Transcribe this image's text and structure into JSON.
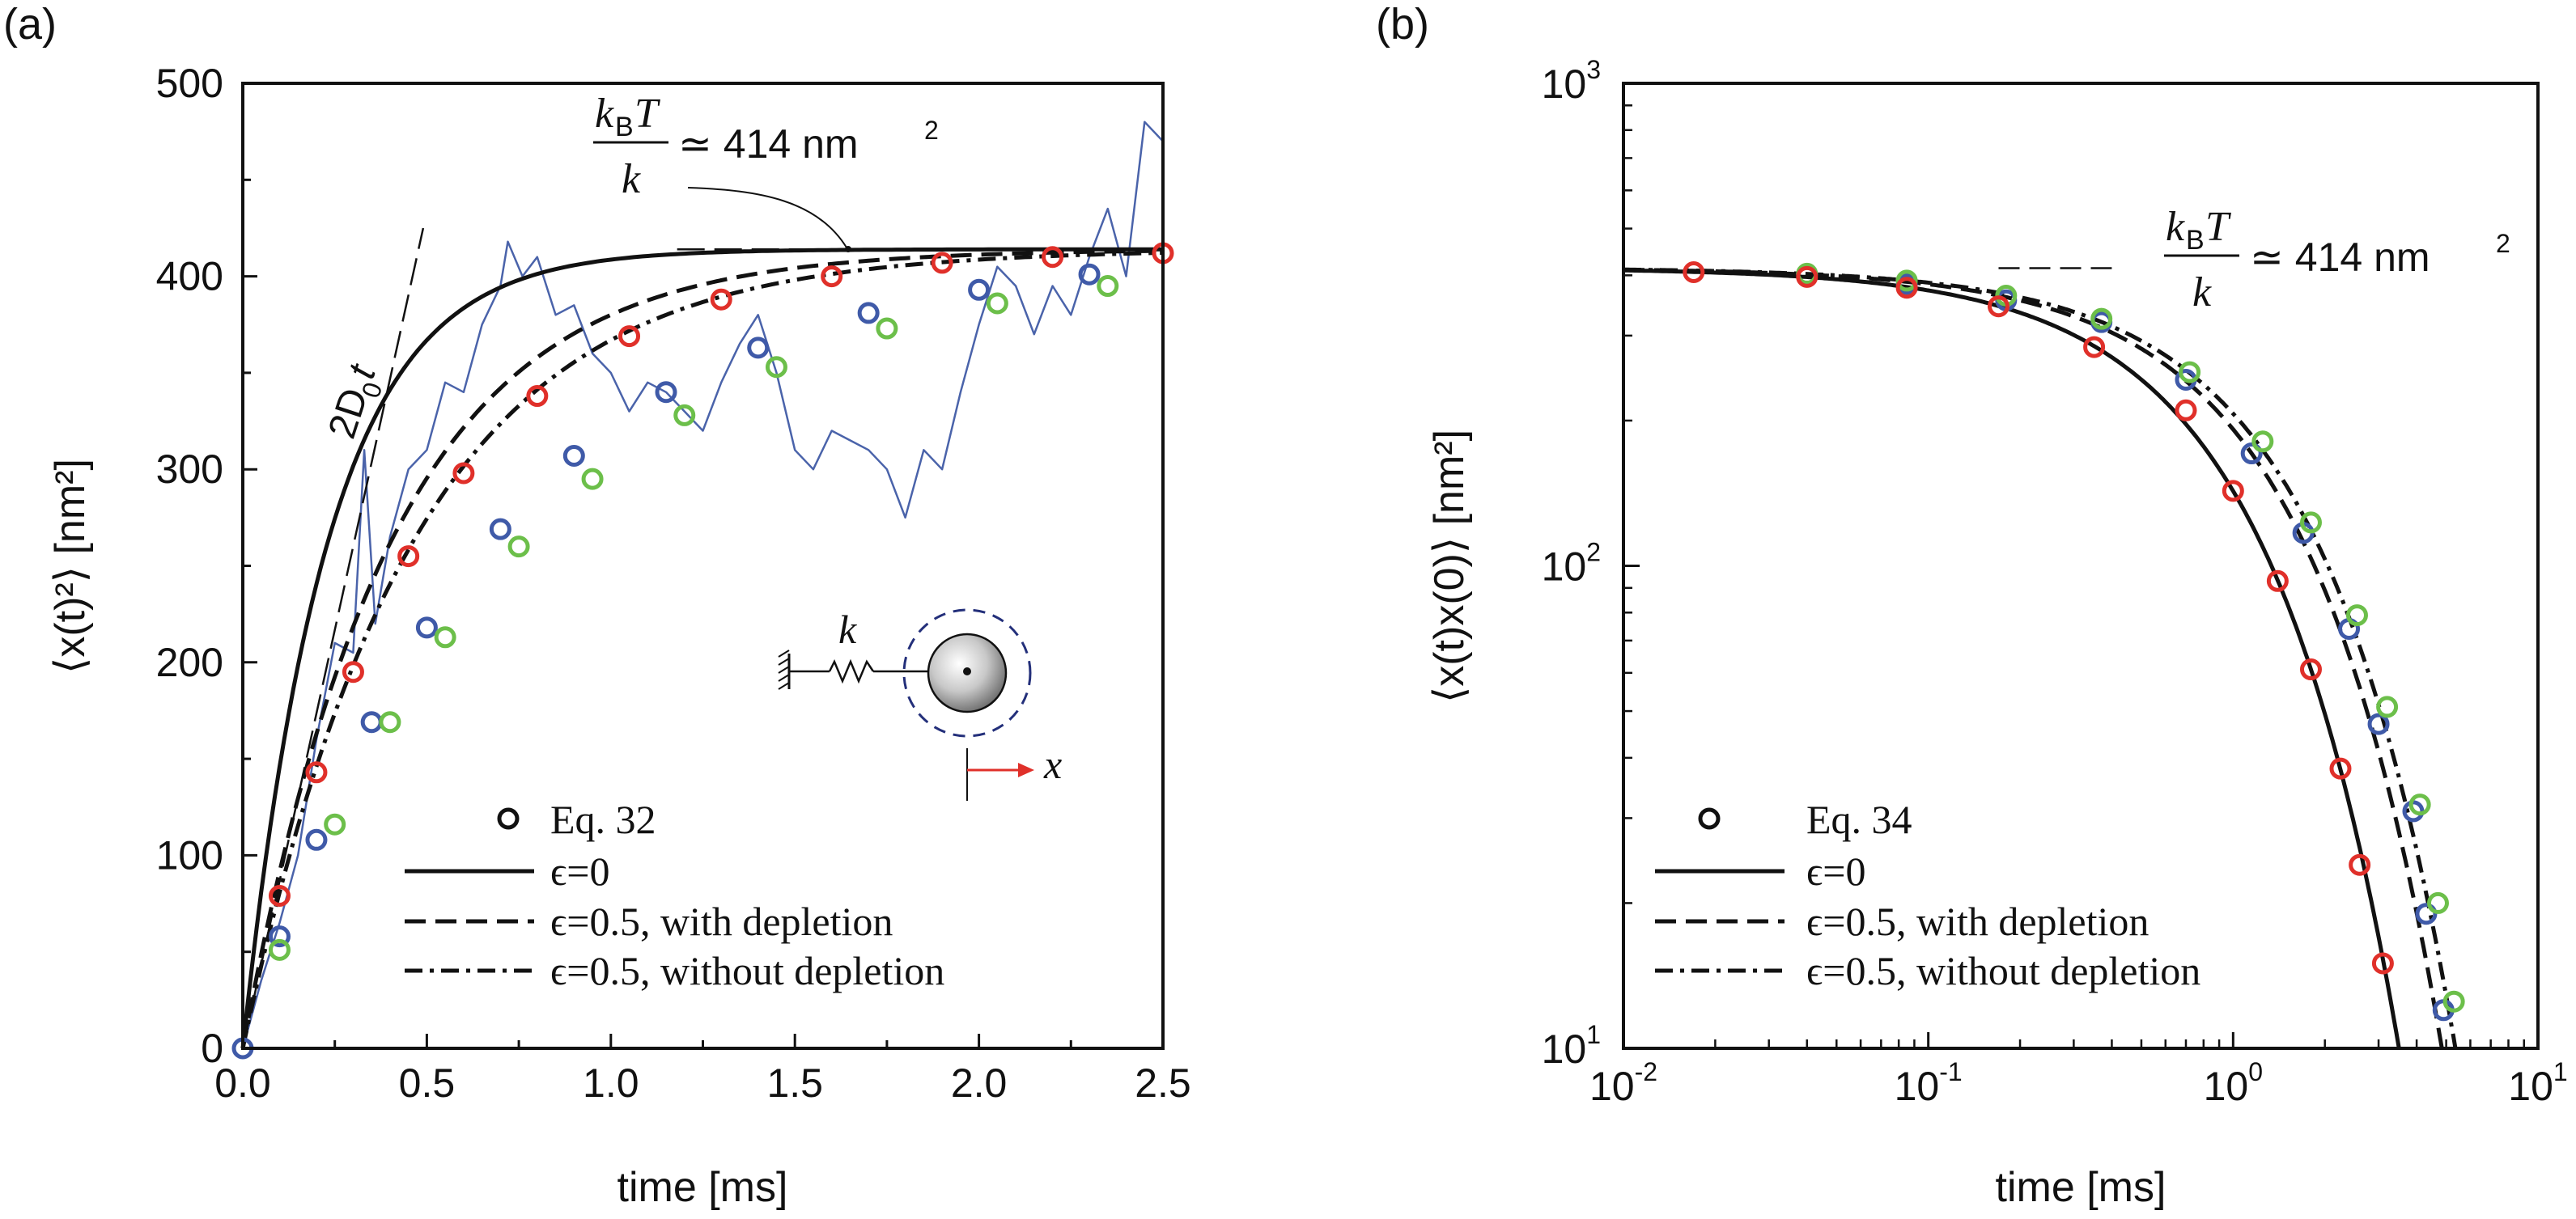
{
  "panel_a_label": "(a)",
  "panel_b_label": "(b)",
  "ann": {
    "frac_num": "k",
    "frac_sub": "B",
    "frac_T": "T",
    "frac_den": "k",
    "approx": "≃ 414 nm",
    "approx_sup": "2",
    "ballistic_main": "2D",
    "ballistic_sub": "0",
    "ballistic_t": "t",
    "inset_k": "k",
    "inset_x": "x"
  },
  "colors": {
    "red": "#e0302a",
    "blue": "#3f5aa8",
    "green": "#6cbf4a",
    "trace": "#4a63aa",
    "inset_dash": "#232f7a",
    "inset_arrow": "#e0302a"
  },
  "legend_a": [
    "Eq. 32",
    "ϵ=0",
    "ϵ=0.5, with depletion",
    "ϵ=0.5, without depletion"
  ],
  "legend_b": [
    "Eq. 34",
    "ϵ=0",
    "ϵ=0.5, with depletion",
    "ϵ=0.5, without depletion"
  ],
  "chart_data": [
    {
      "id": "a",
      "type": "line",
      "title": "",
      "xlabel": "time [ms]",
      "ylabel": "⟨x(t)²⟩ [nm²]",
      "xlim": [
        0,
        2.5
      ],
      "ylim": [
        0,
        500
      ],
      "xticks": [
        0,
        0.5,
        1,
        1.5,
        2,
        2.5
      ],
      "xtick_labels": [
        "0.0",
        "0.5",
        "1.0",
        "1.5",
        "2.0",
        "2.5"
      ],
      "yticks": [
        0,
        100,
        200,
        300,
        400,
        500
      ],
      "ytick_labels": [
        "0",
        "100",
        "200",
        "300",
        "400",
        "500"
      ],
      "plateau": 414,
      "series": [
        {
          "name": "ϵ=0",
          "style": "solid",
          "tau": 0.46
        },
        {
          "name": "ϵ=0.5, with depletion",
          "style": "dash",
          "tau": 0.8
        },
        {
          "name": "ϵ=0.5, without depletion",
          "style": "dashdot",
          "tau": 0.92
        },
        {
          "name": "2D0t",
          "style": "longdash",
          "points": [
            [
              0,
              0
            ],
            [
              0.49,
              425
            ]
          ]
        },
        {
          "name": "kBT/k plateau",
          "style": "longdash",
          "points": [
            [
              1.18,
              414
            ],
            [
              2.5,
              414
            ]
          ]
        }
      ],
      "markers": {
        "red": [
          [
            0.1,
            79
          ],
          [
            0.2,
            143
          ],
          [
            0.3,
            195
          ],
          [
            0.45,
            255
          ],
          [
            0.6,
            298
          ],
          [
            0.8,
            338
          ],
          [
            1.05,
            369
          ],
          [
            1.3,
            388
          ],
          [
            1.6,
            400
          ],
          [
            1.9,
            407
          ],
          [
            2.2,
            410
          ],
          [
            2.5,
            412
          ]
        ],
        "blue": [
          [
            0,
            0
          ],
          [
            0.1,
            58
          ],
          [
            0.2,
            108
          ],
          [
            0.35,
            169
          ],
          [
            0.5,
            218
          ],
          [
            0.7,
            269
          ],
          [
            0.9,
            307
          ],
          [
            1.15,
            340
          ],
          [
            1.4,
            363
          ],
          [
            1.7,
            381
          ],
          [
            2.0,
            393
          ],
          [
            2.3,
            401
          ]
        ],
        "green": [
          [
            0.1,
            51
          ],
          [
            0.25,
            116
          ],
          [
            0.4,
            169
          ],
          [
            0.55,
            213
          ],
          [
            0.75,
            260
          ],
          [
            0.95,
            295
          ],
          [
            1.2,
            328
          ],
          [
            1.45,
            353
          ],
          [
            1.75,
            373
          ],
          [
            2.05,
            386
          ],
          [
            2.35,
            395
          ]
        ]
      },
      "trace": [
        [
          0,
          0
        ],
        [
          0.05,
          35
        ],
        [
          0.1,
          65
        ],
        [
          0.15,
          100
        ],
        [
          0.2,
          160
        ],
        [
          0.25,
          210
        ],
        [
          0.3,
          205
        ],
        [
          0.33,
          310
        ],
        [
          0.36,
          220
        ],
        [
          0.4,
          265
        ],
        [
          0.45,
          300
        ],
        [
          0.5,
          310
        ],
        [
          0.55,
          345
        ],
        [
          0.6,
          340
        ],
        [
          0.65,
          375
        ],
        [
          0.7,
          395
        ],
        [
          0.72,
          418
        ],
        [
          0.76,
          400
        ],
        [
          0.8,
          410
        ],
        [
          0.85,
          380
        ],
        [
          0.9,
          385
        ],
        [
          0.95,
          360
        ],
        [
          1.0,
          350
        ],
        [
          1.05,
          330
        ],
        [
          1.1,
          345
        ],
        [
          1.15,
          340
        ],
        [
          1.2,
          330
        ],
        [
          1.25,
          320
        ],
        [
          1.3,
          345
        ],
        [
          1.35,
          365
        ],
        [
          1.4,
          380
        ],
        [
          1.45,
          350
        ],
        [
          1.5,
          310
        ],
        [
          1.55,
          300
        ],
        [
          1.6,
          320
        ],
        [
          1.65,
          315
        ],
        [
          1.7,
          310
        ],
        [
          1.75,
          300
        ],
        [
          1.8,
          275
        ],
        [
          1.85,
          310
        ],
        [
          1.9,
          300
        ],
        [
          1.95,
          340
        ],
        [
          2.0,
          375
        ],
        [
          2.05,
          405
        ],
        [
          2.1,
          395
        ],
        [
          2.15,
          370
        ],
        [
          2.2,
          395
        ],
        [
          2.25,
          380
        ],
        [
          2.3,
          410
        ],
        [
          2.35,
          435
        ],
        [
          2.4,
          400
        ],
        [
          2.45,
          480
        ],
        [
          2.5,
          470
        ]
      ]
    },
    {
      "id": "b",
      "type": "line",
      "title": "",
      "xlabel": "time [ms]",
      "ylabel": "⟨x(t)x(0)⟩ [nm²]",
      "xscale": "log",
      "yscale": "log",
      "xlim": [
        0.01,
        10
      ],
      "ylim": [
        10,
        1000
      ],
      "xticks": [
        0.01,
        0.1,
        1,
        10
      ],
      "xtick_labels": [
        [
          "10",
          "-2"
        ],
        [
          "10",
          "-1"
        ],
        [
          "10",
          "0"
        ],
        [
          "10",
          "1"
        ]
      ],
      "yticks": [
        10,
        100,
        1000
      ],
      "ytick_labels": [
        [
          "10",
          "1"
        ],
        [
          "10",
          "2"
        ],
        [
          "10",
          "3"
        ]
      ],
      "plateau": 414,
      "series": [
        {
          "name": "ϵ=0",
          "style": "solid",
          "tau": 0.94
        },
        {
          "name": "ϵ=0.5, with depletion",
          "style": "dash",
          "tau": 1.3
        },
        {
          "name": "ϵ=0.5, without depletion",
          "style": "dashdot",
          "tau": 1.44
        },
        {
          "name": "kBT/k plateau",
          "style": "dash",
          "points": [
            [
              0.17,
              414
            ],
            [
              0.4,
              414
            ]
          ]
        }
      ],
      "markers": {
        "red": [
          [
            0.017,
            406
          ],
          [
            0.04,
            397
          ],
          [
            0.085,
            377
          ],
          [
            0.17,
            345
          ],
          [
            0.35,
            284
          ],
          [
            0.7,
            210
          ],
          [
            1.0,
            143
          ],
          [
            1.4,
            93
          ],
          [
            1.8,
            61
          ],
          [
            2.25,
            38
          ],
          [
            2.6,
            24
          ],
          [
            3.1,
            15
          ]
        ],
        "blue": [
          [
            0.04,
            402
          ],
          [
            0.085,
            384
          ],
          [
            0.18,
            355
          ],
          [
            0.37,
            320
          ],
          [
            0.7,
            243
          ],
          [
            1.15,
            171
          ],
          [
            1.7,
            117
          ],
          [
            2.4,
            74
          ],
          [
            3.0,
            47
          ],
          [
            3.9,
            31
          ],
          [
            4.3,
            19
          ],
          [
            4.9,
            12
          ]
        ],
        "green": [
          [
            0.04,
            403
          ],
          [
            0.085,
            390
          ],
          [
            0.18,
            363
          ],
          [
            0.37,
            325
          ],
          [
            0.72,
            252
          ],
          [
            1.25,
            181
          ],
          [
            1.8,
            123
          ],
          [
            2.55,
            79
          ],
          [
            3.2,
            51
          ],
          [
            4.1,
            32
          ],
          [
            4.7,
            20
          ],
          [
            5.3,
            12.5
          ]
        ]
      }
    }
  ]
}
